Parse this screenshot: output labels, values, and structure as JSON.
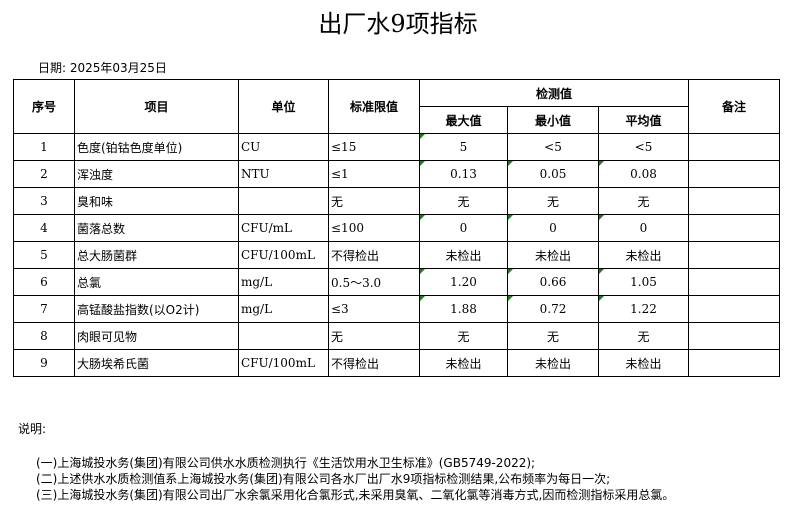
{
  "title": "出厂水9项指标",
  "date": "日期: 2025年03月25日",
  "headers": {
    "no": "序号",
    "item": "项目",
    "unit": "单位",
    "limit": "标准限值",
    "measured": "检测值",
    "max": "最大值",
    "min": "最小值",
    "avg": "平均值",
    "remark": "备注"
  },
  "rows": [
    {
      "no": "1",
      "item": "色度(铂钴色度单位)",
      "unit": "CU",
      "limit": "≤15",
      "max": "5",
      "min": "<5",
      "avg": "<5"
    },
    {
      "no": "2",
      "item": "浑浊度",
      "unit": "NTU",
      "limit": "≤1",
      "max": "0.13",
      "min": "0.05",
      "avg": "0.08"
    },
    {
      "no": "3",
      "item": "臭和味",
      "unit": "",
      "limit": "无",
      "max": "无",
      "min": "无",
      "avg": "无"
    },
    {
      "no": "4",
      "item": "菌落总数",
      "unit": "CFU/mL",
      "limit": "≤100",
      "max": "0",
      "min": "0",
      "avg": "0"
    },
    {
      "no": "5",
      "item": "总大肠菌群",
      "unit": "CFU/100mL",
      "limit": "不得检出",
      "max": "未检出",
      "min": "未检出",
      "avg": "未检出"
    },
    {
      "no": "6",
      "item": "总氯",
      "unit": "mg/L",
      "limit": "0.5～3.0",
      "max": "1.20",
      "min": "0.66",
      "avg": "1.05"
    },
    {
      "no": "7",
      "item": "高锰酸盐指数(以O2计)",
      "unit": "mg/L",
      "limit": "≤3",
      "max": "1.88",
      "min": "0.72",
      "avg": "1.22"
    },
    {
      "no": "8",
      "item": "肉眼可见物",
      "unit": "",
      "limit": "无",
      "max": "无",
      "min": "无",
      "avg": "无"
    },
    {
      "no": "9",
      "item": "大肠埃希氏菌",
      "unit": "CFU/100mL",
      "limit": "不得检出",
      "max": "未检出",
      "min": "未检出",
      "avg": "未检出"
    }
  ],
  "notes": {
    "heading": "说明:",
    "lines": [
      "(一)上海城投水务(集团)有限公司供水水质检测执行《生活饮用水卫生标准》(GB5749-2022);",
      "(二)上述供水水质检测值系上海城投水务(集团)有限公司各水厂出厂水9项指标检测结果,公布频率为每日一次;",
      "(三)上海城投水务(集团)有限公司出厂水余氯采用化合氯形式,未采用臭氧、二氧化氯等消毒方式,因而检测指标采用总氯。"
    ]
  },
  "colors": {
    "error_indicator": "#1a7f1a"
  }
}
